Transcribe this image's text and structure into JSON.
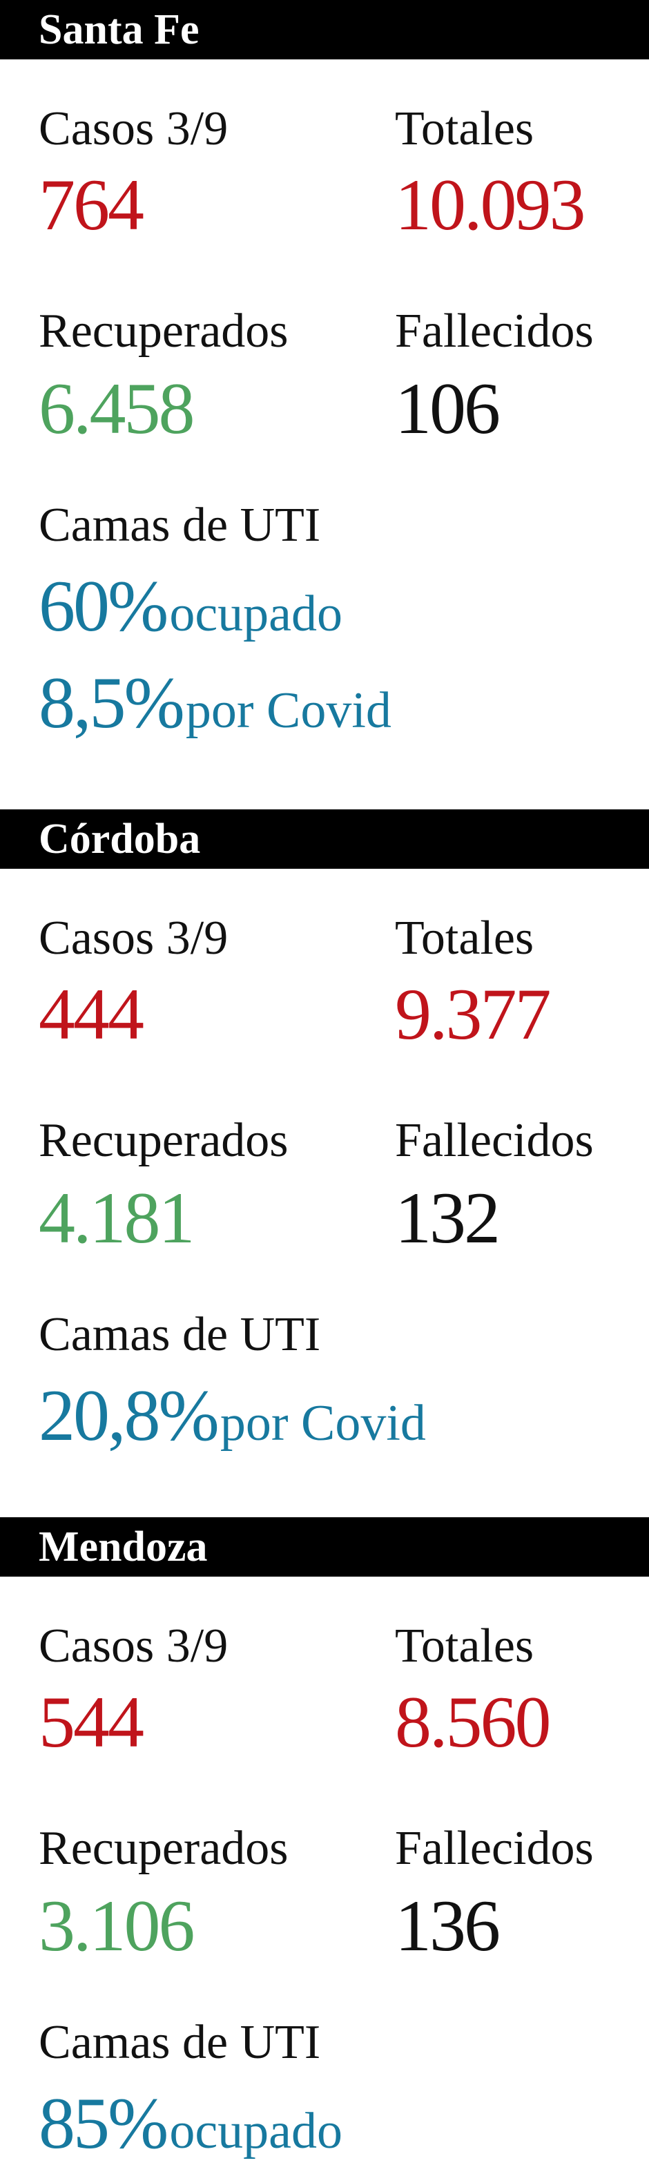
{
  "sections": [
    {
      "name": "Santa Fe",
      "cases_label": "Casos 3/9",
      "cases": "764",
      "total_label": "Totales",
      "total": "10.093",
      "recovered_label": "Recuperados",
      "recovered": "6.458",
      "deaths_label": "Fallecidos",
      "deaths": "106",
      "icu_label": "Camas de UTI",
      "icu": [
        {
          "value": "60%",
          "text": "ocupado"
        },
        {
          "value": "8,5%",
          "text": "por Covid"
        }
      ]
    },
    {
      "name": "Córdoba",
      "cases_label": "Casos 3/9",
      "cases": "444",
      "total_label": "Totales",
      "total": "9.377",
      "recovered_label": "Recuperados",
      "recovered": "4.181",
      "deaths_label": "Fallecidos",
      "deaths": "132",
      "icu_label": "Camas de UTI",
      "icu": [
        {
          "value": "20,8%",
          "text": "por Covid"
        }
      ]
    },
    {
      "name": "Mendoza",
      "cases_label": "Casos 3/9",
      "cases": "544",
      "total_label": "Totales",
      "total": "8.560",
      "recovered_label": "Recuperados",
      "recovered": "3.106",
      "deaths_label": "Fallecidos",
      "deaths": "136",
      "icu_label": "Camas de UTI",
      "icu": [
        {
          "value": "85%",
          "text": "ocupado"
        }
      ]
    }
  ]
}
